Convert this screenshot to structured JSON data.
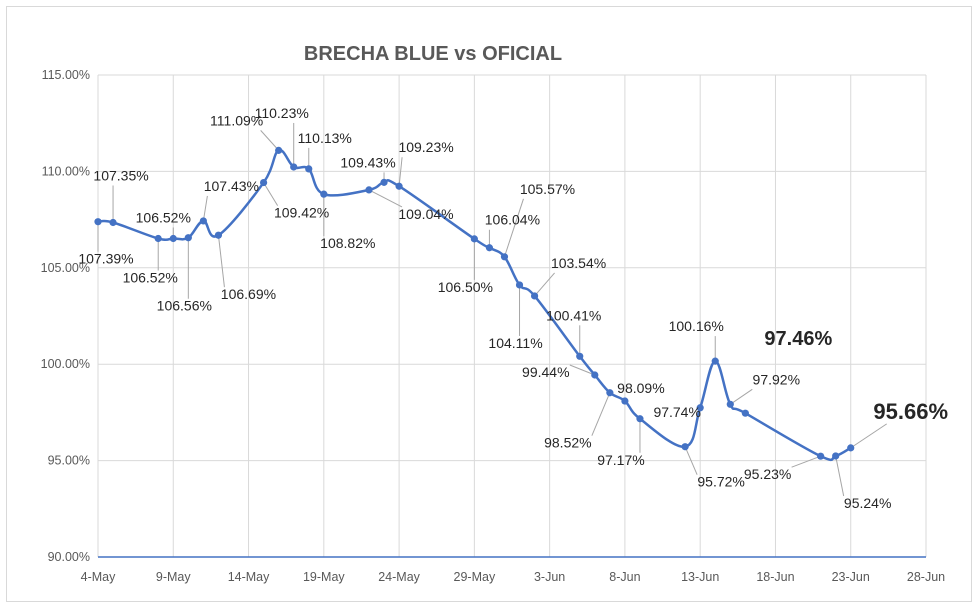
{
  "chart_data": {
    "type": "line",
    "title": "BRECHA BLUE vs OFICIAL",
    "x_tick_labels": [
      "4-May",
      "9-May",
      "14-May",
      "19-May",
      "24-May",
      "29-May",
      "3-Jun",
      "8-Jun",
      "13-Jun",
      "18-Jun",
      "23-Jun",
      "28-Jun"
    ],
    "y_tick_labels": [
      "90.00%",
      "95.00%",
      "100.00%",
      "105.00%",
      "110.00%",
      "115.00%"
    ],
    "xlim": [
      "2021-05-04",
      "2021-06-28"
    ],
    "ylim": [
      90,
      115
    ],
    "grid": true,
    "line_color": "#4472c4",
    "grid_color": "#d9d9d9",
    "axis_color": "#4472c4",
    "series": [
      {
        "points": [
          {
            "x": "2021-05-04",
            "y": 107.39,
            "label": "107.39%"
          },
          {
            "x": "2021-05-05",
            "y": 107.35,
            "label": "107.35%"
          },
          {
            "x": "2021-05-08",
            "y": 106.52,
            "label": "106.52%"
          },
          {
            "x": "2021-05-09",
            "y": 106.52,
            "label": "106.52%"
          },
          {
            "x": "2021-05-10",
            "y": 106.56,
            "label": "106.56%"
          },
          {
            "x": "2021-05-11",
            "y": 107.43,
            "label": "107.43%"
          },
          {
            "x": "2021-05-12",
            "y": 106.69,
            "label": "106.69%"
          },
          {
            "x": "2021-05-15",
            "y": 109.42,
            "label": "109.42%"
          },
          {
            "x": "2021-05-16",
            "y": 111.09,
            "label": "111.09%"
          },
          {
            "x": "2021-05-17",
            "y": 110.23,
            "label": "110.23%"
          },
          {
            "x": "2021-05-18",
            "y": 110.13,
            "label": "110.13%"
          },
          {
            "x": "2021-05-19",
            "y": 108.82,
            "label": "108.82%"
          },
          {
            "x": "2021-05-22",
            "y": 109.04,
            "label": "109.04%"
          },
          {
            "x": "2021-05-23",
            "y": 109.43,
            "label": "109.43%"
          },
          {
            "x": "2021-05-24",
            "y": 109.23,
            "label": "109.23%"
          },
          {
            "x": "2021-05-29",
            "y": 106.5,
            "label": "106.50%"
          },
          {
            "x": "2021-05-30",
            "y": 106.04,
            "label": "106.04%"
          },
          {
            "x": "2021-05-31",
            "y": 105.57,
            "label": "105.57%"
          },
          {
            "x": "2021-06-01",
            "y": 104.11,
            "label": "104.11%"
          },
          {
            "x": "2021-06-02",
            "y": 103.54,
            "label": "103.54%"
          },
          {
            "x": "2021-06-05",
            "y": 100.41,
            "label": "100.41%"
          },
          {
            "x": "2021-06-06",
            "y": 99.44,
            "label": "99.44%"
          },
          {
            "x": "2021-06-07",
            "y": 98.52,
            "label": "98.52%"
          },
          {
            "x": "2021-06-08",
            "y": 98.09,
            "label": "98.09%"
          },
          {
            "x": "2021-06-09",
            "y": 97.17,
            "label": "97.17%"
          },
          {
            "x": "2021-06-12",
            "y": 95.72,
            "label": "95.72%"
          },
          {
            "x": "2021-06-13",
            "y": 97.74,
            "label": "97.74%"
          },
          {
            "x": "2021-06-14",
            "y": 100.16,
            "label": "100.16%"
          },
          {
            "x": "2021-06-15",
            "y": 97.92,
            "label": "97.92%"
          },
          {
            "x": "2021-06-16",
            "y": 97.46,
            "label": "97.46%"
          },
          {
            "x": "2021-06-21",
            "y": 95.23,
            "label": "95.23%"
          },
          {
            "x": "2021-06-22",
            "y": 95.24,
            "label": "95.24%"
          },
          {
            "x": "2021-06-23",
            "y": 95.66,
            "label": "95.66%"
          }
        ]
      }
    ]
  }
}
